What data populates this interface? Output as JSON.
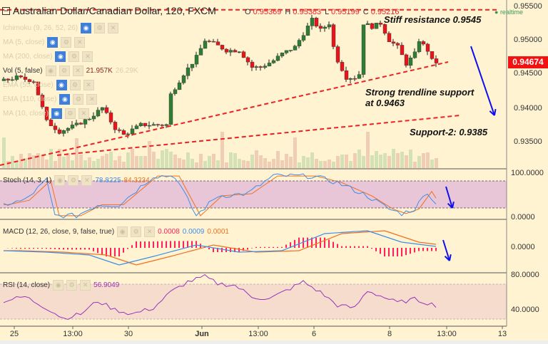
{
  "header": {
    "title": "Australian Dollar/Canadian Dollar, 120, FXCM",
    "o_label": "O",
    "o": "0.95369",
    "h_label": "H",
    "h": "0.95383",
    "l_label": "L",
    "l": "0.95199",
    "c_label": "C",
    "c": "0.95216",
    "realtime": "realtime"
  },
  "studies": [
    {
      "label": "Ichimoku (9, 26, 52, 26)"
    },
    {
      "label": "MA (5, close)"
    },
    {
      "label": "MA (200, close)"
    },
    {
      "label": "Vol (5, false)",
      "v1": "21.957K",
      "v2": "26.29K"
    },
    {
      "label": "EMA (55, close)"
    },
    {
      "label": "EMA (110, close)"
    },
    {
      "label": "MA (10, close)"
    }
  ],
  "panes": {
    "stoch": {
      "label": "Stoch (14, 3, 1)",
      "k": "78.8225",
      "d": "84.3234"
    },
    "macd": {
      "label": "MACD (12, 26, close, 9, false, true)",
      "hist": "0.0008",
      "macd": "0.0009",
      "signal": "0.0001"
    },
    "rsi": {
      "label": "RSI (14, close)",
      "value": "56.9049"
    }
  },
  "price_axis": {
    "ticks": [
      "0.95500",
      "0.95000",
      "0.94500",
      "0.94000",
      "0.93500"
    ],
    "last": "0.94674"
  },
  "stoch_axis": [
    "100.0000",
    "0.0000"
  ],
  "macd_axis": [
    "0.0000"
  ],
  "rsi_axis": [
    "80.0000",
    "40.0000"
  ],
  "time_axis": [
    "25",
    "13:00",
    "30",
    "Jun",
    "13:00",
    "6",
    "8",
    "13:00",
    "13"
  ],
  "annotations": {
    "resistance": "Stiff resistance 0.9545",
    "support1a": "Strong trendline support",
    "support1b": "at 0.9463",
    "support2": "Support-2: 0.9385"
  },
  "colors": {
    "up": "#2e7d32",
    "down": "#e8141b",
    "stoch_k": "#3d8fe8",
    "stoch_d": "#f07020",
    "rsi": "#9933bb",
    "hist": "#ff2060",
    "trend": "#ee2222",
    "arrow": "#1010ee"
  },
  "chart_data": {
    "type": "candlestick",
    "title": "Australian Dollar/Canadian Dollar, 120, FXCM",
    "price_keypoints": [
      [
        0,
        0.944
      ],
      [
        3,
        0.9445
      ],
      [
        7,
        0.944
      ],
      [
        10,
        0.938
      ],
      [
        13,
        0.9365
      ],
      [
        17,
        0.9375
      ],
      [
        20,
        0.9385
      ],
      [
        23,
        0.94
      ],
      [
        26,
        0.937
      ],
      [
        28,
        0.936
      ],
      [
        32,
        0.9375
      ],
      [
        35,
        0.9375
      ],
      [
        38,
        0.9375
      ],
      [
        39,
        0.942
      ],
      [
        42,
        0.945
      ],
      [
        45,
        0.9475
      ],
      [
        47,
        0.95
      ],
      [
        49,
        0.9495
      ],
      [
        52,
        0.9485
      ],
      [
        55,
        0.9485
      ],
      [
        58,
        0.946
      ],
      [
        60,
        0.946
      ],
      [
        63,
        0.947
      ],
      [
        65,
        0.948
      ],
      [
        68,
        0.949
      ],
      [
        70,
        0.951
      ],
      [
        72,
        0.953
      ],
      [
        74,
        0.9515
      ],
      [
        76,
        0.9525
      ],
      [
        77,
        0.949
      ],
      [
        78,
        0.947
      ],
      [
        80,
        0.9445
      ],
      [
        82,
        0.9445
      ],
      [
        83,
        0.945
      ],
      [
        84,
        0.9525
      ],
      [
        86,
        0.952
      ],
      [
        88,
        0.9525
      ],
      [
        90,
        0.95
      ],
      [
        92,
        0.949
      ],
      [
        94,
        0.9465
      ],
      [
        96,
        0.948
      ],
      [
        97,
        0.95
      ],
      [
        99,
        0.9485
      ],
      [
        100,
        0.947
      ],
      [
        101,
        0.94674
      ]
    ],
    "ylim": [
      0.9325,
      0.956
    ],
    "resistance": 0.9545,
    "trend_support": 0.9463,
    "support2": 0.9385,
    "stoch_keypoints": [
      [
        0,
        30
      ],
      [
        5,
        40
      ],
      [
        10,
        85
      ],
      [
        12,
        5
      ],
      [
        17,
        5
      ],
      [
        22,
        30
      ],
      [
        27,
        30
      ],
      [
        35,
        95
      ],
      [
        40,
        95
      ],
      [
        45,
        5
      ],
      [
        50,
        50
      ],
      [
        57,
        55
      ],
      [
        63,
        95
      ],
      [
        72,
        95
      ],
      [
        78,
        80
      ],
      [
        85,
        50
      ],
      [
        90,
        20
      ],
      [
        93,
        10
      ],
      [
        96,
        20
      ],
      [
        99,
        60
      ],
      [
        101,
        30
      ]
    ],
    "macd_keypoints": [
      [
        0,
        -0.0002
      ],
      [
        10,
        -0.0003
      ],
      [
        20,
        -0.0005
      ],
      [
        27,
        -0.0012
      ],
      [
        35,
        -0.0006
      ],
      [
        45,
        0.0002
      ],
      [
        55,
        -0.0003
      ],
      [
        65,
        -0.0002
      ],
      [
        75,
        0.001
      ],
      [
        85,
        0.0012
      ],
      [
        93,
        0.0004
      ],
      [
        101,
        0.0001
      ]
    ],
    "rsi_keypoints": [
      [
        0,
        50
      ],
      [
        5,
        55
      ],
      [
        10,
        42
      ],
      [
        14,
        30
      ],
      [
        18,
        35
      ],
      [
        22,
        50
      ],
      [
        26,
        40
      ],
      [
        30,
        35
      ],
      [
        35,
        42
      ],
      [
        39,
        60
      ],
      [
        43,
        72
      ],
      [
        47,
        78
      ],
      [
        50,
        70
      ],
      [
        54,
        68
      ],
      [
        58,
        55
      ],
      [
        62,
        52
      ],
      [
        66,
        62
      ],
      [
        70,
        72
      ],
      [
        74,
        60
      ],
      [
        78,
        45
      ],
      [
        82,
        42
      ],
      [
        85,
        62
      ],
      [
        88,
        56
      ],
      [
        92,
        48
      ],
      [
        96,
        52
      ],
      [
        101,
        45
      ]
    ],
    "stoch_ylim": [
      0,
      100
    ],
    "stoch_levels": [
      80,
      20
    ],
    "macd_ylim": [
      -0.0018,
      0.0018
    ],
    "rsi_ylim": [
      20,
      85
    ],
    "rsi_levels": [
      70,
      30
    ]
  }
}
